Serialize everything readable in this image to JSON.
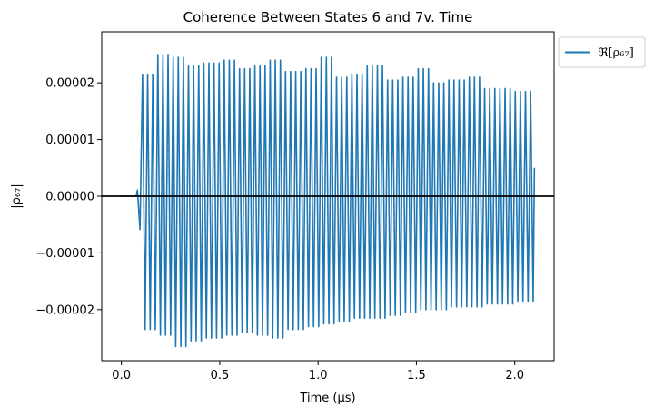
{
  "chart_data": {
    "type": "line",
    "title": "Coherence Between States 6 and 7v. Time",
    "xlabel": "Time (μs)",
    "ylabel": "|ρ₆₇|",
    "xlim": [
      -0.1,
      2.2
    ],
    "ylim": [
      -2.9e-05,
      2.9e-05
    ],
    "xticks": [
      {
        "value": 0.0,
        "label": "0.0"
      },
      {
        "value": 0.5,
        "label": "0.5"
      },
      {
        "value": 1.0,
        "label": "1.0"
      },
      {
        "value": 1.5,
        "label": "1.5"
      },
      {
        "value": 2.0,
        "label": "2.0"
      }
    ],
    "yticks": [
      {
        "value": -2e-05,
        "label": "−0.00002"
      },
      {
        "value": -1e-05,
        "label": "−0.00001"
      },
      {
        "value": 0.0,
        "label": "0.00000"
      },
      {
        "value": 1e-05,
        "label": "0.00001"
      },
      {
        "value": 2e-05,
        "label": "0.00002"
      }
    ],
    "grid": false,
    "legend_position": "outside-top-right",
    "zero_line": {
      "y": 0.0,
      "color": "#000000"
    },
    "series": [
      {
        "name": "ℜ[ρ₆₇]",
        "color": "#1f77b4",
        "flat_until": 0.075,
        "flat_value": 0.0,
        "oscillation": {
          "start": 0.075,
          "end": 2.1,
          "cycles": 78,
          "peak_values": [
            2.15e-05,
            2.5e-05,
            2.45e-05,
            2.3e-05,
            2.35e-05,
            2.4e-05,
            2.25e-05,
            2.3e-05,
            2.4e-05,
            2.2e-05,
            2.25e-05,
            2.45e-05,
            2.1e-05,
            2.15e-05,
            2.3e-05,
            2.05e-05,
            2.1e-05,
            2.25e-05,
            2e-05,
            2.05e-05,
            2.1e-05,
            1.9e-05,
            1.9e-05,
            1.85e-05
          ],
          "trough_values": [
            -2.35e-05,
            -2.45e-05,
            -2.65e-05,
            -2.55e-05,
            -2.5e-05,
            -2.45e-05,
            -2.4e-05,
            -2.45e-05,
            -2.5e-05,
            -2.35e-05,
            -2.3e-05,
            -2.25e-05,
            -2.2e-05,
            -2.15e-05,
            -2.15e-05,
            -2.1e-05,
            -2.05e-05,
            -2e-05,
            -2e-05,
            -1.95e-05,
            -1.95e-05,
            -1.9e-05,
            -1.9e-05,
            -1.85e-05
          ],
          "final_value": 5e-06
        }
      }
    ]
  }
}
